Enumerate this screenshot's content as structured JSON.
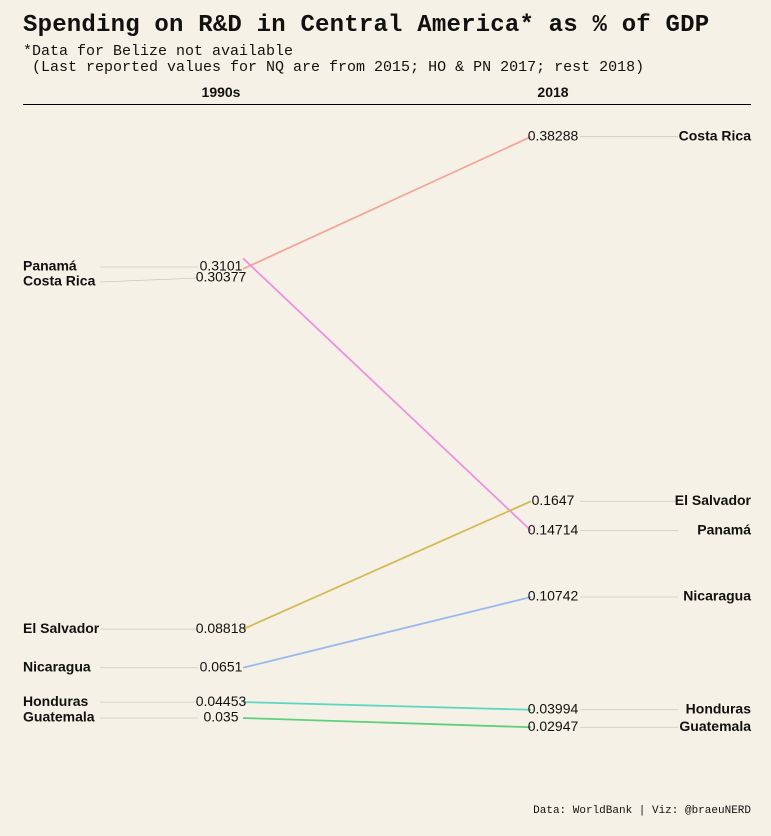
{
  "header": {
    "title": "Spending on R&D in Central America* as % of GDP",
    "subtitle_1": "*Data for Belize not available",
    "subtitle_2": " (Last reported values for NQ are from 2015; HO & PN 2017; rest 2018)"
  },
  "footer": {
    "source": "Data: WorldBank | Viz: @braeuNERD"
  },
  "chart_data": {
    "type": "slope",
    "title": "Spending on R&D in Central America* as % of GDP",
    "columns": [
      "1990s",
      "2018"
    ],
    "series": [
      {
        "name": "Costa Rica",
        "values": [
          0.30377,
          0.38288
        ],
        "labels": [
          "0.30377",
          "0.38288"
        ],
        "color": "#f4a59a"
      },
      {
        "name": "Panamá",
        "values": [
          0.3101,
          0.14714
        ],
        "labels": [
          "0.3101",
          "0.14714"
        ],
        "color": "#ee8fe2"
      },
      {
        "name": "El Salvador",
        "values": [
          0.08818,
          0.1647
        ],
        "labels": [
          "0.08818",
          "0.1647"
        ],
        "color": "#d5b955"
      },
      {
        "name": "Nicaragua",
        "values": [
          0.0651,
          0.10742
        ],
        "labels": [
          "0.0651",
          "0.10742"
        ],
        "color": "#9ab8f2"
      },
      {
        "name": "Honduras",
        "values": [
          0.04453,
          0.03994
        ],
        "labels": [
          "0.04453",
          "0.03994"
        ],
        "color": "#5fd6c4"
      },
      {
        "name": "Guatemala",
        "values": [
          0.035,
          0.02947
        ],
        "labels": [
          "0.035",
          "0.02947"
        ],
        "color": "#5fcf7d"
      }
    ]
  }
}
